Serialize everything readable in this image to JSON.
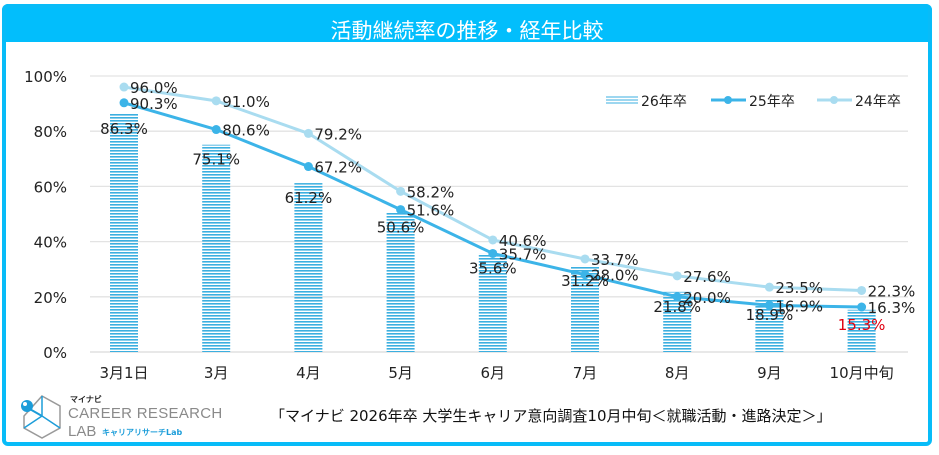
{
  "header": {
    "title": "活動継続率の推移・経年比較"
  },
  "colors": {
    "frame": "#08BCF8",
    "bar26": "#3BAFE0",
    "line25": "#3CB4E8",
    "line24": "#A9DCF0",
    "highlight": "#E00010"
  },
  "chart_data": {
    "type": "bar+line",
    "title": "活動継続率の推移・経年比較",
    "categories": [
      "3月1日",
      "3月",
      "4月",
      "5月",
      "6月",
      "7月",
      "8月",
      "9月",
      "10月中旬"
    ],
    "yticks": [
      "0%",
      "20%",
      "40%",
      "60%",
      "80%",
      "100%"
    ],
    "ylim": [
      0,
      100
    ],
    "grid": true,
    "legend_position": "top-right",
    "series": [
      {
        "name": "26年卒",
        "kind": "bar",
        "values": [
          86.3,
          75.1,
          61.2,
          50.6,
          35.6,
          31.2,
          21.8,
          18.9,
          15.3
        ],
        "labels": [
          "86.3%",
          "75.1%",
          "61.2%",
          "50.6%",
          "35.6%",
          "31.2%",
          "21.8%",
          "18.9%",
          "15.3%"
        ]
      },
      {
        "name": "25年卒",
        "kind": "line",
        "values": [
          90.3,
          80.6,
          67.2,
          51.6,
          35.7,
          28.0,
          20.0,
          16.9,
          16.3
        ],
        "labels": [
          "90.3%",
          "80.6%",
          "67.2%",
          "51.6%",
          "35.7%",
          "28.0%",
          "20.0%",
          "16.9%",
          "16.3%"
        ]
      },
      {
        "name": "24年卒",
        "kind": "line",
        "values": [
          96.0,
          91.0,
          79.2,
          58.2,
          40.6,
          33.7,
          27.6,
          23.5,
          22.3
        ],
        "labels": [
          "96.0%",
          "91.0%",
          "79.2%",
          "58.2%",
          "40.6%",
          "33.7%",
          "27.6%",
          "23.5%",
          "22.3%"
        ]
      }
    ]
  },
  "footer": {
    "source": "「マイナビ  2026年卒  大学生キャリア意向調査10月中旬＜就職活動・進路決定＞」",
    "logo_brand": "マイナビ",
    "logo_line1": "CAREER RESEARCH",
    "logo_line2": "LAB",
    "logo_line3": "キャリアリサーチLab"
  }
}
